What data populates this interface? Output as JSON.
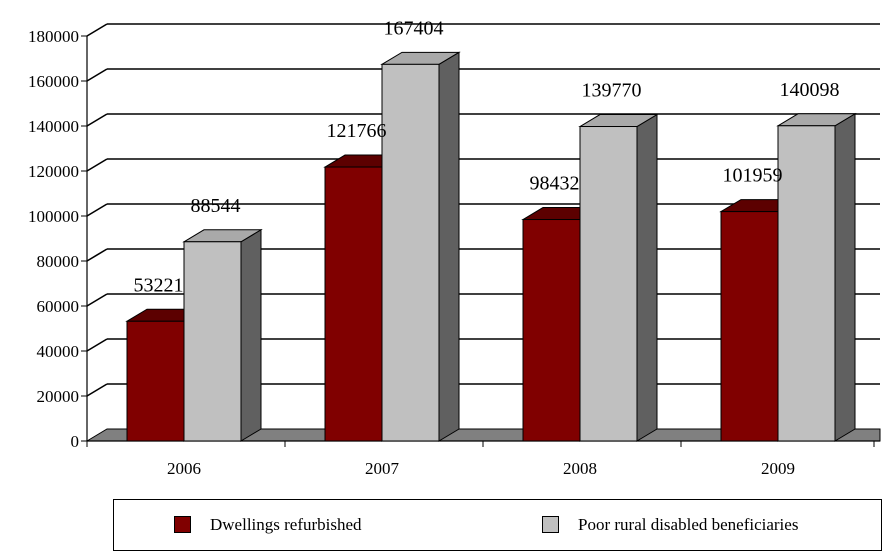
{
  "chart_data": {
    "type": "bar",
    "title": "",
    "xlabel": "",
    "ylabel": "",
    "categories": [
      "2006",
      "2007",
      "2008",
      "2009"
    ],
    "series": [
      {
        "name": "Dwellings refurbished",
        "values": [
          53221,
          121766,
          98432,
          101959
        ],
        "color": "#800000"
      },
      {
        "name": "Poor rural disabled beneficiaries",
        "values": [
          88544,
          167404,
          139770,
          140098
        ],
        "color": "#c0c0c0"
      }
    ],
    "ylim": [
      0,
      180000
    ],
    "yticks": [
      0,
      20000,
      40000,
      60000,
      80000,
      100000,
      120000,
      140000,
      160000,
      180000
    ],
    "data_labels": true,
    "grid": true,
    "legend_position": "bottom",
    "three_d": true
  }
}
